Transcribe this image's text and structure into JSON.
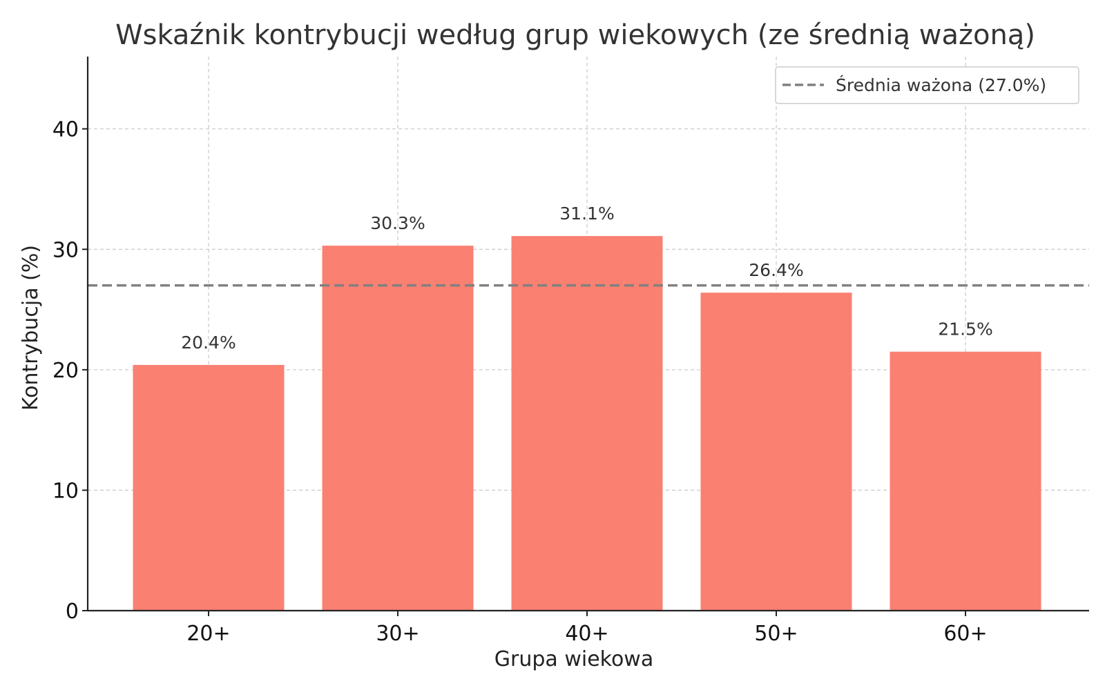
{
  "chart_data": {
    "type": "bar",
    "title": "Wskaźnik kontrybucji według grup wiekowych (ze średnią ważoną)",
    "xlabel": "Grupa wiekowa",
    "ylabel": "Kontrybucja (%)",
    "categories": [
      "20+",
      "30+",
      "40+",
      "50+",
      "60+"
    ],
    "values": [
      20.4,
      30.3,
      31.1,
      26.4,
      21.5
    ],
    "data_labels": [
      "20.4%",
      "30.3%",
      "31.1%",
      "26.4%",
      "21.5%"
    ],
    "ylim": [
      0,
      46
    ],
    "yticks": [
      0,
      10,
      20,
      30,
      40
    ],
    "grid": true,
    "bar_color": "#fa8072",
    "reference_line": {
      "value": 27.0,
      "label": "Średnia ważona (27.0%)",
      "style": "dashed",
      "color": "#808080"
    },
    "legend_position": "top-right"
  }
}
